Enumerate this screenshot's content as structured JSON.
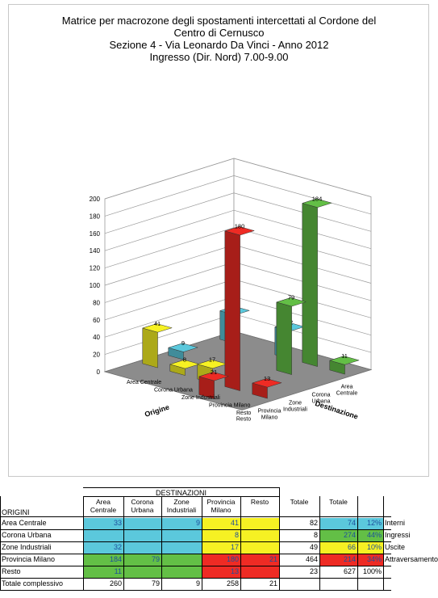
{
  "chart_data": {
    "type": "bar",
    "title_lines": [
      "Matrice per macrozone degli spostamenti intercettati al Cordone del",
      "Centro di Cernusco",
      "Sezione 4 - Via Leonardo Da Vinci - Anno 2012",
      "Ingresso (Dir. Nord) 7.00-9.00"
    ],
    "xlabel": "Origine",
    "ylabel": "Destinazione",
    "origins": [
      "Area Centrale",
      "Corona Urbana",
      "Zone Industriali",
      "Provincia Milano",
      "Resto"
    ],
    "destinations": [
      "Area Centrale",
      "Corona Urbana",
      "Zone Industriali",
      "Provincia Milano",
      "Resto"
    ],
    "zlim": [
      0,
      200
    ],
    "zticks": [
      0,
      20,
      40,
      60,
      80,
      100,
      120,
      140,
      160,
      180,
      200
    ],
    "bars": [
      {
        "origin": 0,
        "destination": 0,
        "value": 33,
        "label": "33",
        "color": "#5bc8dc"
      },
      {
        "origin": 2,
        "destination": 0,
        "value": 32,
        "label": "32",
        "color": "#5bc8dc"
      },
      {
        "origin": 3,
        "destination": 0,
        "value": 184,
        "label": "184",
        "color": "#63bf46"
      },
      {
        "origin": 3,
        "destination": 1,
        "value": 79,
        "label": "79",
        "color": "#63bf46"
      },
      {
        "origin": 4,
        "destination": 0,
        "value": 11,
        "label": "11",
        "color": "#63bf46"
      },
      {
        "origin": 0,
        "destination": 2,
        "value": 9,
        "label": "9",
        "color": "#5bc8dc"
      },
      {
        "origin": 0,
        "destination": 3,
        "value": 41,
        "label": "41",
        "color": "#f6f123"
      },
      {
        "origin": 1,
        "destination": 3,
        "value": 8,
        "label": "8",
        "color": "#f6f123"
      },
      {
        "origin": 2,
        "destination": 3,
        "value": 17,
        "label": "17",
        "color": "#f6f123"
      },
      {
        "origin": 3,
        "destination": 3,
        "value": 180,
        "label": "180",
        "color": "#ee2b24"
      },
      {
        "origin": 4,
        "destination": 3,
        "value": 13,
        "label": "13",
        "color": "#ee2b24"
      },
      {
        "origin": 3,
        "destination": 4,
        "value": 21,
        "label": "21",
        "color": "#ee2b24"
      }
    ]
  },
  "table": {
    "top_header": "DESTINAZIONI",
    "row_header": "ORIGINI",
    "col_headers": [
      "Area Centrale",
      "Corona Urbana",
      "Zone Industriali",
      "Provincia Milano",
      "Resto",
      "Totale",
      "Totale"
    ],
    "rows": [
      {
        "label": "Area Centrale",
        "cells": [
          "33",
          "",
          "9",
          "41",
          "",
          "82",
          "74",
          "12%",
          "Interni"
        ]
      },
      {
        "label": "Corona Urbana",
        "cells": [
          "",
          "",
          "",
          "8",
          "",
          "8",
          "274",
          "44%",
          "Ingressi"
        ]
      },
      {
        "label": "Zone Industriali",
        "cells": [
          "32",
          "",
          "",
          "17",
          "",
          "49",
          "66",
          "10%",
          "Uscite"
        ]
      },
      {
        "label": "Provincia Milano",
        "cells": [
          "184",
          "79",
          "",
          "180",
          "21",
          "464",
          "214",
          "34%",
          "Attraversamento"
        ]
      },
      {
        "label": "Resto",
        "cells": [
          "11",
          "",
          "",
          "13",
          "",
          "23",
          "627",
          "100%",
          ""
        ]
      },
      {
        "label": "Totale complessivo",
        "cells": [
          "260",
          "79",
          "9",
          "258",
          "21",
          "",
          "",
          "",
          ""
        ]
      }
    ],
    "colors": {
      "cyan": "#5bc8dc",
      "green": "#63bf46",
      "yellow": "#f6f123",
      "red": "#ee2b24"
    }
  }
}
